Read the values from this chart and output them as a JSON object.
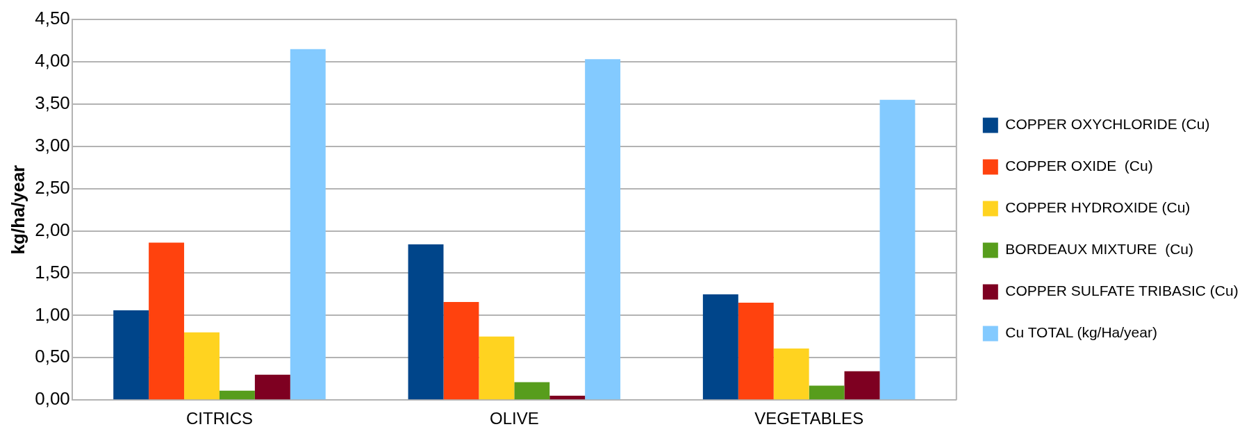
{
  "chart_data": {
    "type": "bar",
    "ylabel": "kg/ha/year",
    "categories": [
      "CITRICS",
      "OLIVE",
      "VEGETABLES"
    ],
    "series": [
      {
        "name": "COPPER OXYCHLORIDE (Cu)",
        "color": "#00458a",
        "values": [
          1.06,
          1.84,
          1.25
        ]
      },
      {
        "name": "COPPER OXIDE  (Cu)",
        "color": "#ff420e",
        "values": [
          1.86,
          1.16,
          1.15
        ]
      },
      {
        "name": "COPPER HYDROXIDE (Cu)",
        "color": "#ffd320",
        "values": [
          0.8,
          0.75,
          0.61
        ]
      },
      {
        "name": "BORDEAUX MIXTURE  (Cu)",
        "color": "#579d1c",
        "values": [
          0.11,
          0.21,
          0.17
        ]
      },
      {
        "name": "COPPER SULFATE TRIBASIC (Cu)",
        "color": "#7e0021",
        "values": [
          0.3,
          0.05,
          0.34
        ]
      },
      {
        "name": "Cu TOTAL (kg/Ha/year)",
        "color": "#83caff",
        "values": [
          4.15,
          4.03,
          3.55
        ]
      }
    ],
    "ylim": [
      0,
      4.5
    ],
    "yticks": [
      {
        "value": 0,
        "label": "0,00"
      },
      {
        "value": 0.5,
        "label": "0,50"
      },
      {
        "value": 1,
        "label": "1,00"
      },
      {
        "value": 1.5,
        "label": "1,50"
      },
      {
        "value": 2,
        "label": "2,00"
      },
      {
        "value": 2.5,
        "label": "2,50"
      },
      {
        "value": 3,
        "label": "3,00"
      },
      {
        "value": 3.5,
        "label": "3,50"
      },
      {
        "value": 4,
        "label": "4,00"
      },
      {
        "value": 4.5,
        "label": "4,50"
      }
    ],
    "grid": "y",
    "legend": "right"
  }
}
